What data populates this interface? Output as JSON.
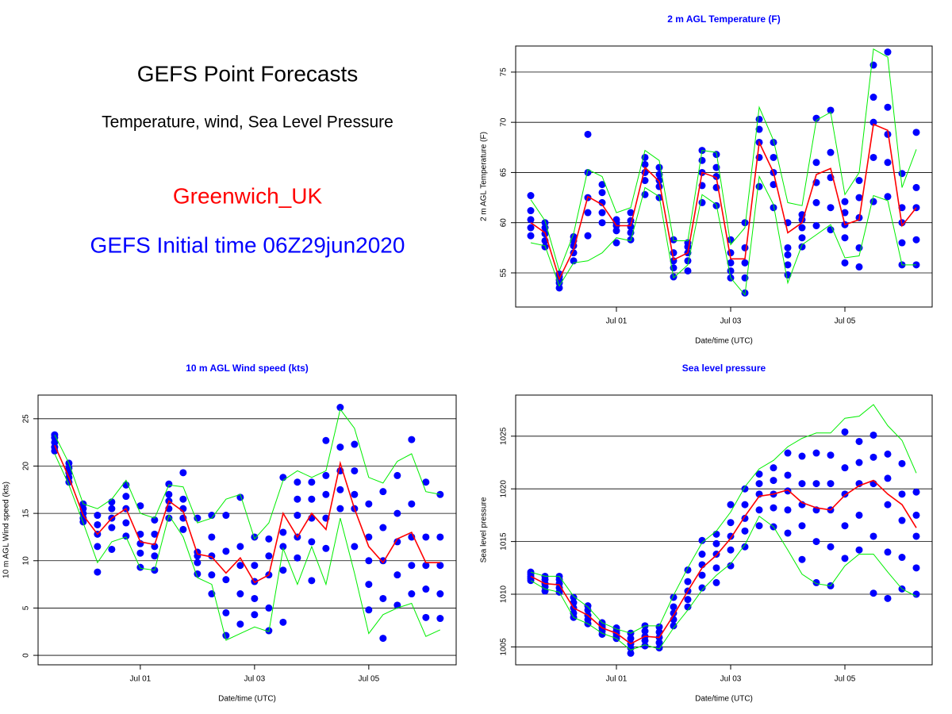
{
  "header": {
    "title": "GEFS Point Forecasts",
    "subtitle": "Temperature, wind, Sea Level Pressure",
    "location": "Greenwich_UK",
    "init_time": "GEFS Initial time 06Z29jun2020"
  },
  "chart_data": [
    {
      "type": "line",
      "title": "2 m AGL Temperature (F)",
      "xlabel": "Date/time (UTC)",
      "ylabel": "2 m AGL Temperature (F)",
      "x": [
        -1.5,
        -1.25,
        -1.0,
        -0.75,
        -0.5,
        -0.25,
        0,
        0.25,
        0.5,
        0.75,
        1.0,
        1.25,
        1.5,
        1.75,
        2.0,
        2.25,
        2.5,
        2.75,
        3.0,
        3.25,
        3.5,
        3.75,
        4.0,
        4.25,
        4.5,
        4.75,
        5.0,
        5.25
      ],
      "xlim": [
        -1.764,
        5.528
      ],
      "xticks": [
        {
          "value": 0,
          "label": "Jul 01"
        },
        {
          "value": 2,
          "label": "Jul 03"
        },
        {
          "value": 4,
          "label": "Jul 05"
        }
      ],
      "ylim": [
        51.6,
        77.6
      ],
      "yticks": [
        55,
        60,
        65,
        70,
        75
      ],
      "grid": true,
      "member_color": "#0000ff",
      "members": [
        [
          58.7,
          59.5,
          60.3,
          61.2,
          62.7
        ],
        [
          57.6,
          58.2,
          58.9,
          59.5,
          60.0
        ],
        [
          53.5,
          54.0,
          54.3,
          54.6,
          54.9
        ],
        [
          56.2,
          57.0,
          57.7,
          58.2,
          58.6
        ],
        [
          58.7,
          61.0,
          62.5,
          65.0,
          68.8
        ],
        [
          60.0,
          61.0,
          62.0,
          63.0,
          63.8
        ],
        [
          58.0,
          59.2,
          59.7,
          60.0,
          60.3
        ],
        [
          58.3,
          59.0,
          59.6,
          60.2,
          61.0
        ],
        [
          62.8,
          64.2,
          65.0,
          65.8,
          66.5
        ],
        [
          62.5,
          63.6,
          64.2,
          64.8,
          65.5
        ],
        [
          54.6,
          55.5,
          56.2,
          57.0,
          58.3
        ],
        [
          55.2,
          56.2,
          57.0,
          57.6,
          58.0
        ],
        [
          62.0,
          63.7,
          65.0,
          66.2,
          67.2
        ],
        [
          61.7,
          63.5,
          64.6,
          65.5,
          66.8
        ],
        [
          54.5,
          55.2,
          56.0,
          57.0,
          58.3
        ],
        [
          53.0,
          54.5,
          56.0,
          57.5,
          60.0
        ],
        [
          63.6,
          66.5,
          68.0,
          69.3,
          70.3
        ],
        [
          61.5,
          63.8,
          65.0,
          66.5,
          68.0
        ],
        [
          54.8,
          55.8,
          56.8,
          57.5,
          60.0
        ],
        [
          57.6,
          58.5,
          59.5,
          60.3,
          60.8
        ],
        [
          59.7,
          62.0,
          64.0,
          66.0,
          70.4
        ],
        [
          59.3,
          61.5,
          64.5,
          67.0,
          71.2
        ],
        [
          56.0,
          58.5,
          59.8,
          61.0,
          62.1
        ],
        [
          55.6,
          57.5,
          60.5,
          62.5,
          64.2
        ],
        [
          62.1,
          66.5,
          70.0,
          72.5,
          75.7
        ],
        [
          62.6,
          66.0,
          68.8,
          71.5,
          77.0
        ],
        [
          55.8,
          58.0,
          60.0,
          61.5,
          64.9
        ],
        [
          55.8,
          58.3,
          61.5,
          63.5,
          69.0
        ]
      ],
      "series": [
        {
          "color": "#00ee00",
          "values": [
            62.3,
            60.2,
            55.2,
            58.9,
            65.3,
            64.6,
            61.0,
            61.5,
            67.2,
            66.2,
            58.2,
            58.2,
            67.2,
            67.0,
            57.8,
            59.5,
            71.5,
            68.2,
            62.0,
            61.7,
            70.2,
            71.0,
            62.8,
            65.0,
            77.3,
            76.5,
            63.5,
            67.3
          ]
        },
        {
          "color": "#00ee00",
          "values": [
            58.0,
            57.7,
            53.7,
            56.0,
            56.2,
            57.0,
            58.5,
            58.2,
            63.5,
            62.6,
            54.5,
            55.8,
            62.8,
            61.8,
            54.5,
            52.8,
            64.6,
            61.8,
            54.0,
            57.8,
            58.8,
            59.8,
            56.5,
            56.7,
            62.7,
            62.2,
            55.8,
            55.8
          ]
        },
        {
          "color": "#ff0000",
          "values": [
            60.0,
            59.0,
            54.4,
            57.3,
            62.6,
            61.8,
            59.7,
            59.7,
            65.5,
            64.1,
            56.3,
            57.0,
            65.0,
            64.5,
            56.4,
            56.4,
            68.0,
            65.0,
            59.0,
            60.0,
            64.8,
            65.4,
            59.8,
            60.3,
            69.8,
            69.2,
            59.7,
            61.5
          ]
        }
      ]
    },
    {
      "type": "line",
      "title": "10 m AGL Wind speed (kts)",
      "xlabel": "Date/time (UTC)",
      "ylabel": "10 m AGL Wind speed (kts)",
      "x": [
        -1.5,
        -1.25,
        -1.0,
        -0.75,
        -0.5,
        -0.25,
        0,
        0.25,
        0.5,
        0.75,
        1.0,
        1.25,
        1.5,
        1.75,
        2.0,
        2.25,
        2.5,
        2.75,
        3.0,
        3.25,
        3.5,
        3.75,
        4.0,
        4.25,
        4.5,
        4.75,
        5.0,
        5.25
      ],
      "xlim": [
        -1.79,
        5.53
      ],
      "xticks": [
        {
          "value": 0,
          "label": "Jul 01"
        },
        {
          "value": 2,
          "label": "Jul 03"
        },
        {
          "value": 4,
          "label": "Jul 05"
        }
      ],
      "ylim": [
        -1.0,
        27.5
      ],
      "yticks": [
        0,
        5,
        10,
        15,
        20,
        25
      ],
      "grid": true,
      "member_color": "#0000ff",
      "members": [
        [
          21.6,
          22.0,
          22.5,
          23.0,
          23.3
        ],
        [
          18.3,
          18.8,
          19.3,
          19.8,
          20.3
        ],
        [
          14.1,
          14.5,
          15.0,
          15.5,
          16.0
        ],
        [
          8.8,
          11.5,
          12.8,
          13.8,
          14.8
        ],
        [
          11.2,
          13.5,
          14.5,
          15.5,
          16.2
        ],
        [
          12.6,
          14.0,
          15.5,
          16.8,
          18.0
        ],
        [
          9.3,
          10.8,
          11.8,
          12.8,
          15.8
        ],
        [
          9.0,
          10.5,
          11.5,
          12.8,
          14.3
        ],
        [
          14.5,
          15.5,
          16.3,
          17.0,
          18.1
        ],
        [
          13.3,
          14.5,
          15.5,
          16.5,
          19.3
        ],
        [
          8.6,
          9.8,
          10.5,
          10.9,
          14.5
        ],
        [
          6.5,
          8.5,
          10.5,
          12.5,
          14.8
        ],
        [
          2.1,
          4.5,
          8.0,
          11.0,
          14.8
        ],
        [
          3.3,
          6.5,
          9.5,
          11.5,
          16.7
        ],
        [
          4.3,
          6.0,
          7.8,
          9.5,
          12.5
        ],
        [
          2.6,
          5.0,
          8.5,
          10.5,
          12.3
        ],
        [
          3.5,
          9.0,
          11.5,
          13.0,
          18.8
        ],
        [
          10.3,
          12.5,
          14.8,
          16.5,
          18.3
        ],
        [
          7.9,
          12.0,
          14.5,
          16.5,
          18.3
        ],
        [
          11.3,
          14.5,
          17.0,
          19.0,
          22.7
        ],
        [
          15.5,
          17.5,
          19.5,
          22.0,
          26.2
        ],
        [
          11.5,
          15.5,
          17.0,
          19.5,
          22.3
        ],
        [
          4.8,
          7.5,
          10.0,
          12.5,
          16.0
        ],
        [
          1.8,
          6.0,
          10.0,
          13.5,
          17.3
        ],
        [
          5.3,
          8.5,
          12.0,
          15.0,
          19.0
        ],
        [
          6.5,
          9.5,
          12.5,
          16.0,
          22.8
        ],
        [
          4.0,
          7.0,
          9.5,
          12.5,
          18.3
        ],
        [
          3.9,
          6.5,
          9.5,
          12.5,
          17.0
        ]
      ],
      "series": [
        {
          "color": "#00ee00",
          "values": [
            23.3,
            20.3,
            16.0,
            15.5,
            16.5,
            18.5,
            15.0,
            14.5,
            18.0,
            17.8,
            14.0,
            14.5,
            16.5,
            17.0,
            12.3,
            14.0,
            18.5,
            19.5,
            18.8,
            19.5,
            26.0,
            24.0,
            18.8,
            18.2,
            20.5,
            21.3,
            17.3,
            17.0
          ]
        },
        {
          "color": "#00ee00",
          "values": [
            21.3,
            18.0,
            14.0,
            9.8,
            12.0,
            12.5,
            9.2,
            9.0,
            14.8,
            12.5,
            8.2,
            7.5,
            1.6,
            2.3,
            3.0,
            2.5,
            11.3,
            7.5,
            11.5,
            7.5,
            14.5,
            8.7,
            2.3,
            4.3,
            5.0,
            5.5,
            2.0,
            2.7
          ]
        },
        {
          "color": "#ff0000",
          "values": [
            22.2,
            18.8,
            14.8,
            12.8,
            14.5,
            15.5,
            12.0,
            11.7,
            16.3,
            15.2,
            10.7,
            10.4,
            8.7,
            10.3,
            7.7,
            8.5,
            15.0,
            12.5,
            15.0,
            13.3,
            20.3,
            15.5,
            11.5,
            9.8,
            12.3,
            13.0,
            9.8,
            9.8
          ]
        }
      ]
    },
    {
      "type": "line",
      "title": "Sea level pressure",
      "xlabel": "Date/time (UTC)",
      "ylabel": "Sea level pressure",
      "x": [
        -1.5,
        -1.25,
        -1.0,
        -0.75,
        -0.5,
        -0.25,
        0,
        0.25,
        0.5,
        0.75,
        1.0,
        1.25,
        1.5,
        1.75,
        2.0,
        2.25,
        2.5,
        2.75,
        3.0,
        3.25,
        3.5,
        3.75,
        4.0,
        4.25,
        4.5,
        4.75,
        5.0,
        5.25
      ],
      "xlim": [
        -1.764,
        5.528
      ],
      "xticks": [
        {
          "value": 0,
          "label": "Jul 01"
        },
        {
          "value": 2,
          "label": "Jul 03"
        },
        {
          "value": 4,
          "label": "Jul 05"
        }
      ],
      "ylim": [
        1003.3,
        1028.9
      ],
      "yticks": [
        1005,
        1010,
        1015,
        1020,
        1025
      ],
      "grid": true,
      "member_color": "#0000ff",
      "members": [
        [
          1011.3,
          1011.5,
          1011.7,
          1011.9,
          1012.1
        ],
        [
          1010.3,
          1010.7,
          1011.0,
          1011.4,
          1011.7
        ],
        [
          1010.2,
          1010.6,
          1011.0,
          1011.4,
          1011.7
        ],
        [
          1007.8,
          1008.2,
          1008.7,
          1009.2,
          1009.7
        ],
        [
          1007.2,
          1007.6,
          1008.0,
          1008.5,
          1008.9
        ],
        [
          1006.2,
          1006.5,
          1006.8,
          1007.0,
          1007.3
        ],
        [
          1005.8,
          1006.0,
          1006.3,
          1006.5,
          1006.8
        ],
        [
          1004.4,
          1004.9,
          1005.3,
          1005.8,
          1006.3
        ],
        [
          1005.1,
          1005.6,
          1006.0,
          1006.5,
          1007.0
        ],
        [
          1004.9,
          1005.4,
          1005.9,
          1006.4,
          1006.9
        ],
        [
          1007.0,
          1007.6,
          1008.2,
          1008.8,
          1009.7
        ],
        [
          1008.8,
          1009.5,
          1010.3,
          1011.2,
          1012.3
        ],
        [
          1010.6,
          1011.8,
          1012.8,
          1013.8,
          1015.1
        ],
        [
          1011.1,
          1012.5,
          1013.8,
          1014.8,
          1015.7
        ],
        [
          1012.7,
          1014.2,
          1015.5,
          1016.8,
          1018.5
        ],
        [
          1014.5,
          1016.0,
          1017.2,
          1018.5,
          1020.0
        ],
        [
          1016.5,
          1018.0,
          1019.5,
          1020.5,
          1021.4
        ],
        [
          1016.4,
          1018.2,
          1019.5,
          1020.8,
          1022.0
        ],
        [
          1015.8,
          1018.0,
          1019.8,
          1021.3,
          1023.4
        ],
        [
          1013.3,
          1016.5,
          1018.5,
          1020.5,
          1023.1
        ],
        [
          1011.1,
          1015.0,
          1018.0,
          1020.5,
          1023.4
        ],
        [
          1010.8,
          1014.5,
          1018.0,
          1020.5,
          1023.2
        ],
        [
          1013.4,
          1016.5,
          1019.5,
          1022.0,
          1025.4
        ],
        [
          1014.2,
          1017.5,
          1020.5,
          1022.5,
          1024.5
        ],
        [
          1010.1,
          1015.5,
          1020.5,
          1023.0,
          1025.1
        ],
        [
          1009.6,
          1014.0,
          1018.5,
          1021.0,
          1023.3
        ],
        [
          1010.5,
          1013.5,
          1017.0,
          1019.5,
          1022.4
        ],
        [
          1010.0,
          1012.5,
          1015.5,
          1017.5,
          1019.7
        ]
      ],
      "series": [
        {
          "color": "#00ee00",
          "values": [
            1012.1,
            1011.7,
            1011.7,
            1009.8,
            1008.8,
            1007.3,
            1006.7,
            1006.3,
            1007.0,
            1007.0,
            1009.9,
            1012.5,
            1014.9,
            1016.0,
            1017.8,
            1020.2,
            1021.9,
            1022.7,
            1024.0,
            1024.8,
            1025.3,
            1025.3,
            1026.7,
            1026.9,
            1028.0,
            1026.0,
            1024.6,
            1021.5
          ]
        },
        {
          "color": "#00ee00",
          "values": [
            1011.3,
            1010.5,
            1010.2,
            1007.8,
            1007.2,
            1006.3,
            1005.8,
            1004.7,
            1005.2,
            1004.8,
            1006.8,
            1008.5,
            1010.4,
            1011.8,
            1012.9,
            1014.7,
            1017.4,
            1016.4,
            1014.2,
            1011.9,
            1011.0,
            1010.8,
            1012.7,
            1013.8,
            1013.8,
            1012.1,
            1010.5,
            1009.8
          ]
        },
        {
          "color": "#ff0000",
          "values": [
            1011.7,
            1011.0,
            1010.9,
            1008.7,
            1008.0,
            1006.8,
            1006.3,
            1005.3,
            1006.0,
            1005.9,
            1008.0,
            1010.3,
            1012.5,
            1013.7,
            1015.3,
            1017.4,
            1019.3,
            1019.5,
            1019.9,
            1018.7,
            1018.2,
            1018.0,
            1019.4,
            1020.3,
            1020.8,
            1019.5,
            1018.5,
            1016.3
          ]
        }
      ]
    }
  ]
}
